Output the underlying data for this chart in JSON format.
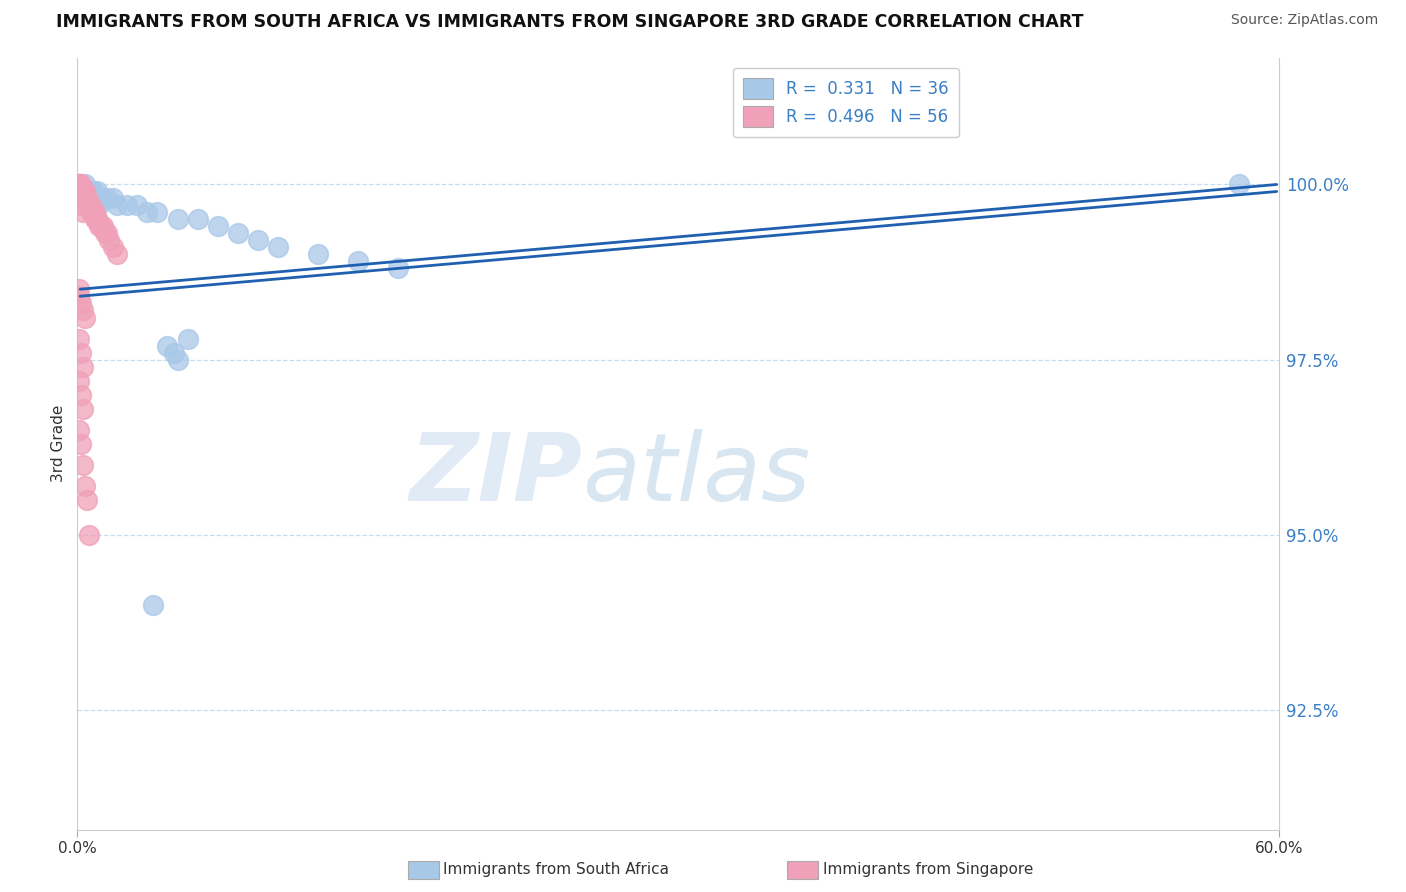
{
  "title": "IMMIGRANTS FROM SOUTH AFRICA VS IMMIGRANTS FROM SINGAPORE 3RD GRADE CORRELATION CHART",
  "source": "Source: ZipAtlas.com",
  "ylabel": "3rd Grade",
  "ytick_labels": [
    "100.0%",
    "97.5%",
    "95.0%",
    "92.5%"
  ],
  "ytick_values": [
    1.0,
    0.975,
    0.95,
    0.925
  ],
  "xmin": 0.0,
  "xmax": 0.6,
  "ymin": 0.908,
  "ymax": 1.018,
  "legend_r1": "R =  0.331   N = 36",
  "legend_r2": "R =  0.496   N = 56",
  "color_blue": "#A8C8E8",
  "color_pink": "#F0A0B8",
  "trend_color": "#2060B0",
  "grid_color": "#C8DCF0",
  "blue_scatter_x": [
    0.001,
    0.002,
    0.003,
    0.004,
    0.005,
    0.007,
    0.008,
    0.009,
    0.01,
    0.012,
    0.015,
    0.018,
    0.02,
    0.025,
    0.03,
    0.035,
    0.04,
    0.05,
    0.06,
    0.07,
    0.08,
    0.09,
    0.1,
    0.12,
    0.14,
    0.16,
    0.003,
    0.006,
    0.008,
    0.011,
    0.58,
    0.05,
    0.045,
    0.055,
    0.048,
    0.038
  ],
  "blue_scatter_y": [
    1.0,
    0.999,
    0.999,
    1.0,
    0.999,
    0.999,
    0.999,
    0.998,
    0.999,
    0.998,
    0.998,
    0.998,
    0.997,
    0.997,
    0.997,
    0.996,
    0.996,
    0.995,
    0.995,
    0.994,
    0.993,
    0.992,
    0.991,
    0.99,
    0.989,
    0.988,
    0.998,
    0.998,
    0.997,
    0.997,
    1.0,
    0.975,
    0.977,
    0.978,
    0.976,
    0.94
  ],
  "pink_scatter_x": [
    0.0005,
    0.001,
    0.001,
    0.001,
    0.002,
    0.002,
    0.002,
    0.002,
    0.003,
    0.003,
    0.003,
    0.004,
    0.004,
    0.004,
    0.005,
    0.005,
    0.005,
    0.006,
    0.006,
    0.007,
    0.007,
    0.008,
    0.008,
    0.009,
    0.009,
    0.01,
    0.01,
    0.011,
    0.012,
    0.013,
    0.014,
    0.015,
    0.016,
    0.018,
    0.02,
    0.001,
    0.001,
    0.002,
    0.003,
    0.001,
    0.001,
    0.002,
    0.003,
    0.004,
    0.001,
    0.002,
    0.003,
    0.001,
    0.002,
    0.003,
    0.001,
    0.002,
    0.003,
    0.004,
    0.005,
    0.006
  ],
  "pink_scatter_y": [
    1.0,
    1.0,
    1.0,
    0.999,
    1.0,
    0.999,
    0.999,
    0.999,
    0.999,
    0.999,
    0.998,
    0.999,
    0.998,
    0.998,
    0.998,
    0.998,
    0.997,
    0.997,
    0.997,
    0.997,
    0.996,
    0.996,
    0.996,
    0.996,
    0.995,
    0.995,
    0.995,
    0.994,
    0.994,
    0.994,
    0.993,
    0.993,
    0.992,
    0.991,
    0.99,
    0.999,
    0.998,
    0.997,
    0.996,
    0.985,
    0.984,
    0.983,
    0.982,
    0.981,
    0.978,
    0.976,
    0.974,
    0.972,
    0.97,
    0.968,
    0.965,
    0.963,
    0.96,
    0.957,
    0.955,
    0.95
  ],
  "blue_trend_x0": 0.0,
  "blue_trend_y0": 0.985,
  "blue_trend_x1": 0.6,
  "blue_trend_y1": 1.0,
  "pink_trend_x0": 0.0,
  "pink_trend_y0": 0.984,
  "pink_trend_x1": 0.6,
  "pink_trend_y1": 0.999
}
